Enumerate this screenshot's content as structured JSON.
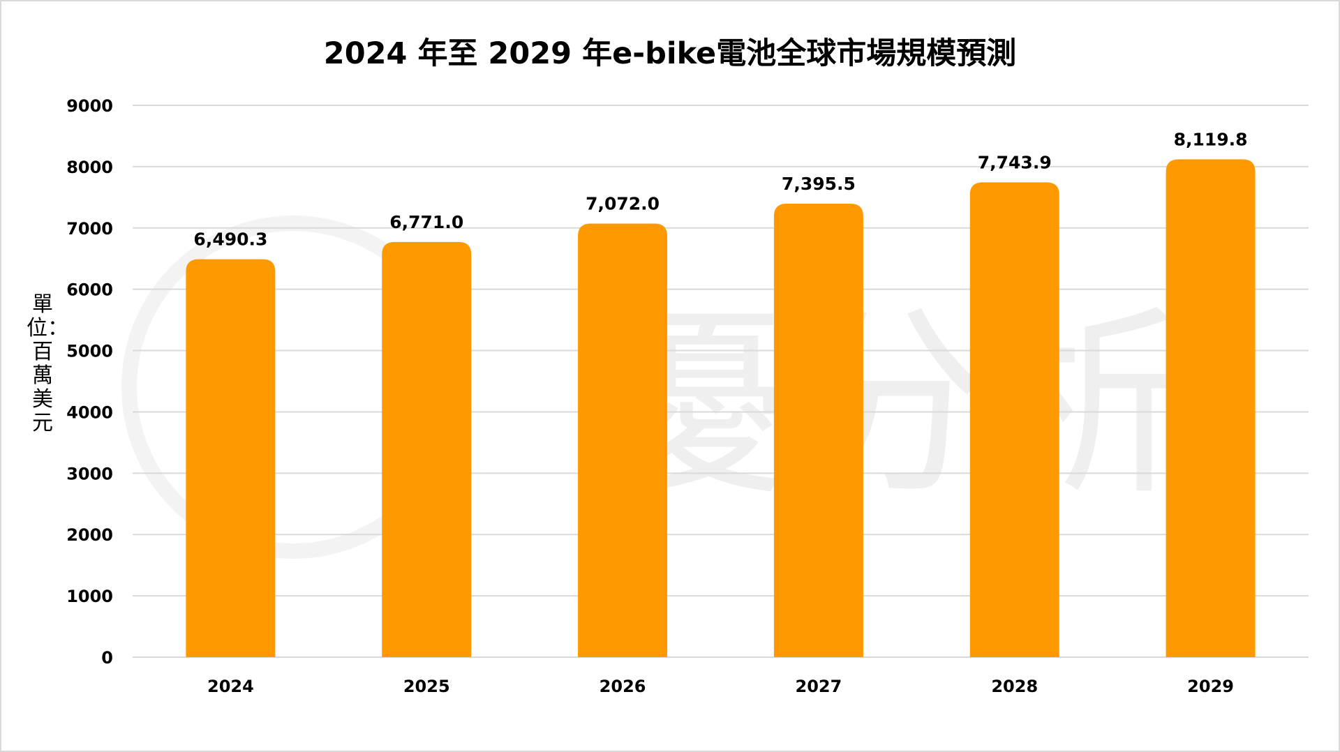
{
  "chart_data": {
    "type": "bar",
    "title": "2024 年至 2029 年e-bike電池全球市場規模預測",
    "ylabel": "單位：百萬美元",
    "xlabel": "",
    "categories": [
      "2024",
      "2025",
      "2026",
      "2027",
      "2028",
      "2029"
    ],
    "values": [
      6490.3,
      6771.0,
      7072.0,
      7395.5,
      7743.9,
      8119.8
    ],
    "value_labels": [
      "6,490.3",
      "6,771.0",
      "7,072.0",
      "7,395.5",
      "7,743.9",
      "8,119.8"
    ],
    "ylim": [
      0,
      9000
    ],
    "yticks": [
      "0",
      "1000",
      "2000",
      "3000",
      "4000",
      "5000",
      "6000",
      "7000",
      "8000",
      "9000"
    ],
    "grid": true,
    "bar_color": "#FF9900",
    "watermark": "優分析"
  }
}
